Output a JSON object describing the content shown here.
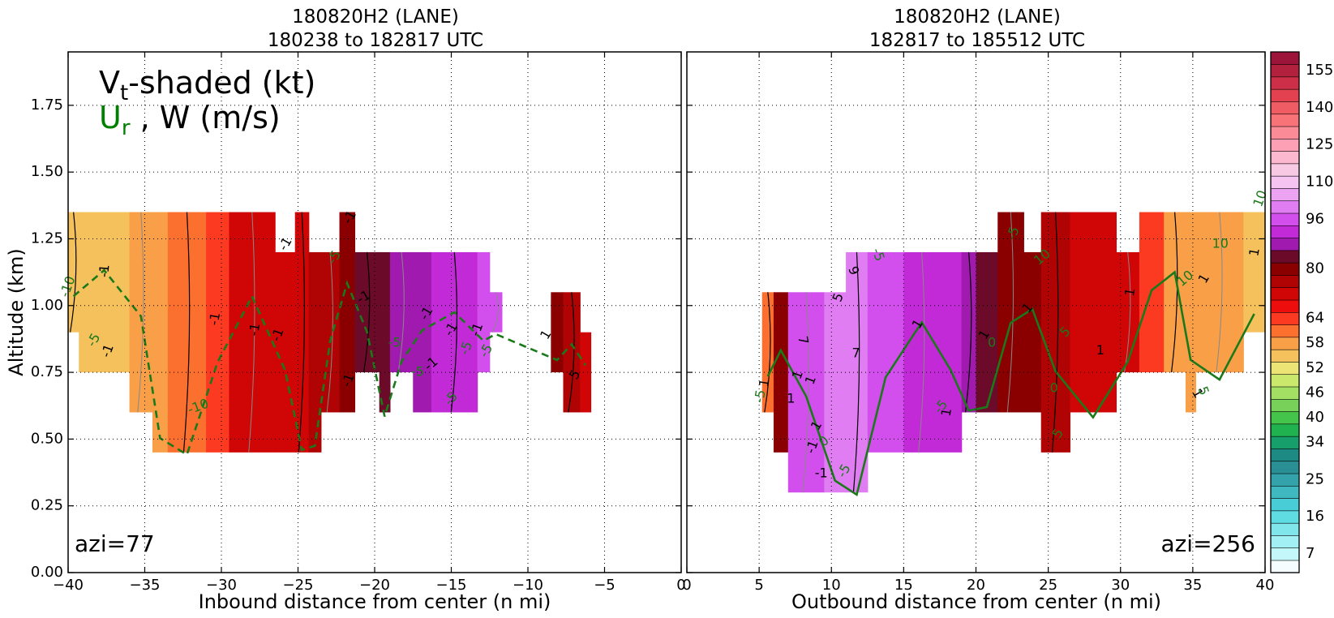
{
  "panels": [
    {
      "title_line1": "180820H2 (LANE)",
      "title_line2": "180238 to 182817 UTC",
      "xlabel": "Inbound distance from center (n mi)",
      "ylabel": "Altitude (km)",
      "azi_label": "azi=77",
      "legend_line1_main": "V",
      "legend_line1_sub": "t",
      "legend_line1_rest": "-shaded (kt)",
      "legend_line2_green_main": "U",
      "legend_line2_green_sub": "r",
      "legend_line2_rest": " , W (m/s)"
    },
    {
      "title_line1": "180820H2 (LANE)",
      "title_line2": "182817 to 185512 UTC",
      "xlabel": "Outbound distance from center (n mi)",
      "azi_label": "azi=256"
    }
  ],
  "chart_data": [
    {
      "type": "heatmap",
      "title": "180820H2 (LANE) 180238 to 182817 UTC",
      "xlabel": "Inbound distance from center (n mi)",
      "ylabel": "Altitude (km)",
      "xlim": [
        -40,
        0
      ],
      "ylim": [
        0,
        1.95
      ],
      "xticks": [
        -40,
        -35,
        -30,
        -25,
        -20,
        -15,
        -10,
        -5,
        0
      ],
      "xtick_labels": [
        "−40",
        "−35",
        "−30",
        "−25",
        "−20",
        "−15",
        "−10",
        "−5",
        "0"
      ],
      "yticks": [
        0,
        0.25,
        0.5,
        0.75,
        1.0,
        1.25,
        1.5,
        1.75
      ],
      "ytick_labels": [
        "0.00",
        "0.25",
        "0.50",
        "0.75",
        "1.00",
        "1.25",
        "1.50",
        "1.75"
      ],
      "grid": true,
      "columns": [
        {
          "x0": -40,
          "x1": -39.3,
          "y0": 0.9,
          "y1": 1.35,
          "v": 57
        },
        {
          "x0": -39.3,
          "x1": -36,
          "y0": 0.75,
          "y1": 1.35,
          "v": 57
        },
        {
          "x0": -36,
          "x1": -34.5,
          "y0": 0.6,
          "y1": 1.35,
          "v": 58
        },
        {
          "x0": -34.5,
          "x1": -33.5,
          "y0": 0.45,
          "y1": 1.35,
          "v": 59
        },
        {
          "x0": -33.5,
          "x1": -31,
          "y0": 0.45,
          "y1": 1.35,
          "v": 62
        },
        {
          "x0": -31,
          "x1": -29.5,
          "y0": 0.45,
          "y1": 1.35,
          "v": 66
        },
        {
          "x0": -29.5,
          "x1": -26.5,
          "y0": 0.45,
          "y1": 1.35,
          "v": 72
        },
        {
          "x0": -26.5,
          "x1": -25.2,
          "y0": 0.45,
          "y1": 1.2,
          "v": 74
        },
        {
          "x0": -25.2,
          "x1": -24.3,
          "y0": 0.45,
          "y1": 1.35,
          "v": 75
        },
        {
          "x0": -24.3,
          "x1": -23.5,
          "y0": 0.45,
          "y1": 1.2,
          "v": 78
        },
        {
          "x0": -23.5,
          "x1": -22.3,
          "y0": 0.6,
          "y1": 1.2,
          "v": 79
        },
        {
          "x0": -22.3,
          "x1": -21.3,
          "y0": 0.6,
          "y1": 1.35,
          "v": 80
        },
        {
          "x0": -21.3,
          "x1": -19.7,
          "y0": 0.75,
          "y1": 1.2,
          "v": 84
        },
        {
          "x0": -19.7,
          "x1": -19,
          "y0": 0.6,
          "y1": 1.2,
          "v": 86
        },
        {
          "x0": -19,
          "x1": -17.5,
          "y0": 0.75,
          "y1": 1.2,
          "v": 88
        },
        {
          "x0": -17.5,
          "x1": -16.3,
          "y0": 0.6,
          "y1": 1.2,
          "v": 90
        },
        {
          "x0": -16.3,
          "x1": -13.3,
          "y0": 0.6,
          "y1": 1.2,
          "v": 94
        },
        {
          "x0": -13.3,
          "x1": -12.5,
          "y0": 0.75,
          "y1": 1.2,
          "v": 96
        },
        {
          "x0": -12.5,
          "x1": -11.7,
          "y0": 0.9,
          "y1": 1.05,
          "v": 97
        },
        {
          "x0": -8.5,
          "x1": -7.7,
          "y0": 0.75,
          "y1": 1.05,
          "v": 82
        },
        {
          "x0": -7.7,
          "x1": -6.6,
          "y0": 0.6,
          "y1": 1.05,
          "v": 77
        },
        {
          "x0": -6.6,
          "x1": -5.9,
          "y0": 0.6,
          "y1": 0.9,
          "v": 75
        }
      ],
      "contour_labels": [
        {
          "text": "-1",
          "x": -37.6,
          "y": 1.13,
          "color": "black",
          "rot": -85
        },
        {
          "text": "-1",
          "x": -37.4,
          "y": 0.83,
          "color": "black",
          "rot": -70
        },
        {
          "text": "-1",
          "x": -30.4,
          "y": 0.95,
          "color": "black",
          "rot": -80
        },
        {
          "text": "-1",
          "x": -27.8,
          "y": 0.91,
          "color": "black",
          "rot": -80
        },
        {
          "text": "-1",
          "x": -26.3,
          "y": 0.89,
          "color": "black",
          "rot": -70
        },
        {
          "text": "-1",
          "x": -21.7,
          "y": 0.72,
          "color": "black",
          "rot": -70
        },
        {
          "text": "-1",
          "x": -20.7,
          "y": 1.03,
          "color": "black",
          "rot": -30
        },
        {
          "text": "-1",
          "x": -16.6,
          "y": 0.97,
          "color": "black",
          "rot": -60
        },
        {
          "text": "-1",
          "x": -15.0,
          "y": 0.91,
          "color": "black",
          "rot": -60
        },
        {
          "text": "-1",
          "x": -13.3,
          "y": 0.91,
          "color": "black",
          "rot": -70
        },
        {
          "text": "-1",
          "x": -16.3,
          "y": 0.78,
          "color": "black",
          "rot": -40
        },
        {
          "text": "1",
          "x": -8.8,
          "y": 0.89,
          "color": "black",
          "rot": -60
        },
        {
          "text": "5",
          "x": -6.9,
          "y": 0.74,
          "color": "black",
          "rot": -60
        },
        {
          "text": "-1",
          "x": -25.8,
          "y": 1.23,
          "color": "black",
          "rot": -60
        },
        {
          "text": "-1",
          "x": -21.6,
          "y": 1.33,
          "color": "black",
          "rot": -60
        },
        {
          "text": "-10",
          "x": -40.0,
          "y": 1.07,
          "color": "green",
          "rot": -70
        },
        {
          "text": "-5",
          "x": -38.3,
          "y": 0.87,
          "color": "green",
          "rot": -60
        },
        {
          "text": "-10",
          "x": -31.5,
          "y": 0.62,
          "color": "green",
          "rot": -20
        },
        {
          "text": "-5",
          "x": -22.6,
          "y": 1.18,
          "color": "green",
          "rot": -60
        },
        {
          "text": "-5",
          "x": -18.7,
          "y": 0.86,
          "color": "green",
          "rot": 0
        },
        {
          "text": "-5",
          "x": -17.2,
          "y": 0.75,
          "color": "green",
          "rot": 0
        },
        {
          "text": "-5",
          "x": -14.0,
          "y": 0.84,
          "color": "green",
          "rot": -70
        },
        {
          "text": "-5",
          "x": -12.7,
          "y": 0.83,
          "color": "green",
          "rot": -60
        },
        {
          "text": "-5",
          "x": -15.0,
          "y": 0.65,
          "color": "green",
          "rot": -50
        }
      ]
    },
    {
      "type": "heatmap",
      "title": "180820H2 (LANE) 182817 to 185512 UTC",
      "xlabel": "Outbound distance from center (n mi)",
      "ylabel": "",
      "xlim": [
        0,
        40
      ],
      "ylim": [
        0,
        1.95
      ],
      "xticks": [
        0,
        5,
        10,
        15,
        20,
        25,
        30,
        35,
        40
      ],
      "xtick_labels": [
        "0",
        "5",
        "10",
        "15",
        "20",
        "25",
        "30",
        "35",
        "40"
      ],
      "grid": true,
      "columns": [
        {
          "x0": 5.2,
          "x1": 6.0,
          "y0": 0.6,
          "y1": 1.05,
          "v": 62
        },
        {
          "x0": 6.0,
          "x1": 7.0,
          "y0": 0.45,
          "y1": 1.05,
          "v": 80
        },
        {
          "x0": 7.0,
          "x1": 9.5,
          "y0": 0.3,
          "y1": 1.05,
          "v": 96
        },
        {
          "x0": 9.5,
          "x1": 11.0,
          "y0": 0.3,
          "y1": 1.05,
          "v": 103
        },
        {
          "x0": 11.0,
          "x1": 12.5,
          "y0": 0.3,
          "y1": 1.2,
          "v": 104
        },
        {
          "x0": 12.5,
          "x1": 15.0,
          "y0": 0.45,
          "y1": 1.2,
          "v": 100
        },
        {
          "x0": 15.0,
          "x1": 17.5,
          "y0": 0.45,
          "y1": 1.2,
          "v": 95
        },
        {
          "x0": 17.5,
          "x1": 19.0,
          "y0": 0.45,
          "y1": 1.2,
          "v": 92
        },
        {
          "x0": 19.0,
          "x1": 20.0,
          "y0": 0.6,
          "y1": 1.2,
          "v": 88
        },
        {
          "x0": 20.0,
          "x1": 21.5,
          "y0": 0.6,
          "y1": 1.2,
          "v": 85
        },
        {
          "x0": 21.5,
          "x1": 23.3,
          "y0": 0.6,
          "y1": 1.35,
          "v": 83
        },
        {
          "x0": 23.3,
          "x1": 24.5,
          "y0": 0.6,
          "y1": 1.2,
          "v": 80
        },
        {
          "x0": 24.5,
          "x1": 26.5,
          "y0": 0.45,
          "y1": 1.35,
          "v": 78
        },
        {
          "x0": 26.5,
          "x1": 29.7,
          "y0": 0.6,
          "y1": 1.35,
          "v": 74
        },
        {
          "x0": 29.7,
          "x1": 31.3,
          "y0": 0.75,
          "y1": 1.2,
          "v": 72
        },
        {
          "x0": 31.3,
          "x1": 33.0,
          "y0": 0.75,
          "y1": 1.35,
          "v": 67
        },
        {
          "x0": 33.0,
          "x1": 34.5,
          "y0": 0.75,
          "y1": 1.35,
          "v": 60
        },
        {
          "x0": 34.5,
          "x1": 35.2,
          "y0": 0.6,
          "y1": 1.35,
          "v": 59
        },
        {
          "x0": 35.2,
          "x1": 38.5,
          "y0": 0.75,
          "y1": 1.35,
          "v": 58
        },
        {
          "x0": 38.5,
          "x1": 40.0,
          "y0": 0.9,
          "y1": 1.35,
          "v": 57
        }
      ],
      "contour_labels": [
        {
          "text": "9",
          "x": 11.5,
          "y": 1.13,
          "color": "black",
          "rot": 70
        },
        {
          "text": "5",
          "x": 10.5,
          "y": 1.03,
          "color": "black",
          "rot": -70
        },
        {
          "text": "7",
          "x": 11.7,
          "y": 0.82,
          "color": "black",
          "rot": 0
        },
        {
          "text": "7",
          "x": 8.0,
          "y": 0.87,
          "color": "black",
          "rot": 80
        },
        {
          "text": "1",
          "x": 7.2,
          "y": 0.65,
          "color": "black",
          "rot": 0
        },
        {
          "text": "1",
          "x": 5.4,
          "y": 0.71,
          "color": "black",
          "rot": -80
        },
        {
          "text": "1",
          "x": 7.7,
          "y": 0.74,
          "color": "black",
          "rot": -70
        },
        {
          "text": "1",
          "x": 8.6,
          "y": 0.72,
          "color": "black",
          "rot": -70
        },
        {
          "text": "1",
          "x": 9.0,
          "y": 0.55,
          "color": "black",
          "rot": -60
        },
        {
          "text": "-1",
          "x": 8.7,
          "y": 0.47,
          "color": "black",
          "rot": -70
        },
        {
          "text": "-1",
          "x": 9.3,
          "y": 0.37,
          "color": "black",
          "rot": 0
        },
        {
          "text": "1",
          "x": 16.0,
          "y": 0.93,
          "color": "black",
          "rot": -60
        },
        {
          "text": "1",
          "x": 18.0,
          "y": 0.6,
          "color": "black",
          "rot": -80
        },
        {
          "text": "1",
          "x": 20.6,
          "y": 0.89,
          "color": "black",
          "rot": -60
        },
        {
          "text": "1",
          "x": 23.6,
          "y": 0.99,
          "color": "black",
          "rot": -50
        },
        {
          "text": "1",
          "x": 28.6,
          "y": 0.83,
          "color": "black",
          "rot": 0
        },
        {
          "text": "1",
          "x": 30.7,
          "y": 1.05,
          "color": "black",
          "rot": -80
        },
        {
          "text": "1",
          "x": 35.8,
          "y": 1.1,
          "color": "black",
          "rot": -60
        },
        {
          "text": "1",
          "x": 35.3,
          "y": 0.67,
          "color": "black",
          "rot": 60
        },
        {
          "text": "1",
          "x": 39.3,
          "y": 1.2,
          "color": "black",
          "rot": -80
        },
        {
          "text": "-5",
          "x": 13.2,
          "y": 1.19,
          "color": "green",
          "rot": 70
        },
        {
          "text": "-5",
          "x": 22.6,
          "y": 1.27,
          "color": "green",
          "rot": -70
        },
        {
          "text": "10",
          "x": 24.6,
          "y": 1.18,
          "color": "green",
          "rot": -40
        },
        {
          "text": "5",
          "x": 26.2,
          "y": 0.9,
          "color": "green",
          "rot": -45
        },
        {
          "text": "0",
          "x": 21.1,
          "y": 0.86,
          "color": "green",
          "rot": 0
        },
        {
          "text": "0",
          "x": 25.4,
          "y": 0.69,
          "color": "green",
          "rot": 0
        },
        {
          "text": "5",
          "x": 25.7,
          "y": 0.52,
          "color": "green",
          "rot": -60
        },
        {
          "text": "0",
          "x": 9.5,
          "y": 0.49,
          "color": "green",
          "rot": -40
        },
        {
          "text": "-5",
          "x": 10.9,
          "y": 0.38,
          "color": "green",
          "rot": -60
        },
        {
          "text": "-5",
          "x": 17.6,
          "y": 0.62,
          "color": "green",
          "rot": -50
        },
        {
          "text": "-5",
          "x": 5.1,
          "y": 0.66,
          "color": "green",
          "rot": -80
        },
        {
          "text": "10",
          "x": 34.5,
          "y": 1.1,
          "color": "green",
          "rot": -40
        },
        {
          "text": "10",
          "x": 36.9,
          "y": 1.23,
          "color": "green",
          "rot": 0
        },
        {
          "text": "10",
          "x": 39.7,
          "y": 1.4,
          "color": "green",
          "rot": -70
        },
        {
          "text": "5",
          "x": 35.7,
          "y": 0.68,
          "color": "green",
          "rot": 70
        }
      ]
    }
  ],
  "colorbar": {
    "levels": [
      4,
      7,
      10,
      13,
      16,
      19,
      22,
      25,
      28,
      31,
      34,
      37,
      40,
      43,
      46,
      49,
      52,
      55,
      58,
      61,
      64,
      68,
      72,
      76,
      80,
      84,
      88,
      92,
      96,
      101,
      106,
      110,
      115,
      120,
      125,
      130,
      135,
      140,
      145,
      150,
      155,
      160
    ],
    "colors": [
      "#f6fdfe",
      "#c4f7f9",
      "#a3f0f4",
      "#80e6ec",
      "#5fdbe2",
      "#48cdd6",
      "#3fb8c0",
      "#34a2aa",
      "#2a8e95",
      "#1e8a84",
      "#169e6b",
      "#20b24e",
      "#44c44a",
      "#78d25a",
      "#a3df62",
      "#c9e86c",
      "#ece575",
      "#f5c15c",
      "#f89f48",
      "#fb6f2f",
      "#fc3a22",
      "#ee0d0d",
      "#d00606",
      "#b00303",
      "#8a0000",
      "#6c0a2a",
      "#a11aaf",
      "#c22ad8",
      "#d24fee",
      "#e07df2",
      "#eba3f2",
      "#f5c4f1",
      "#f8c9e3",
      "#fbb8cf",
      "#fda0b5",
      "#fb8b97",
      "#f77378",
      "#f05c64",
      "#e34050",
      "#cc2f47",
      "#b2223e",
      "#9c143a"
    ],
    "tick_labels": [
      "7",
      "16",
      "25",
      "34",
      "40",
      "46",
      "52",
      "58",
      "64",
      "80",
      "96",
      "110",
      "125",
      "140",
      "155"
    ]
  }
}
